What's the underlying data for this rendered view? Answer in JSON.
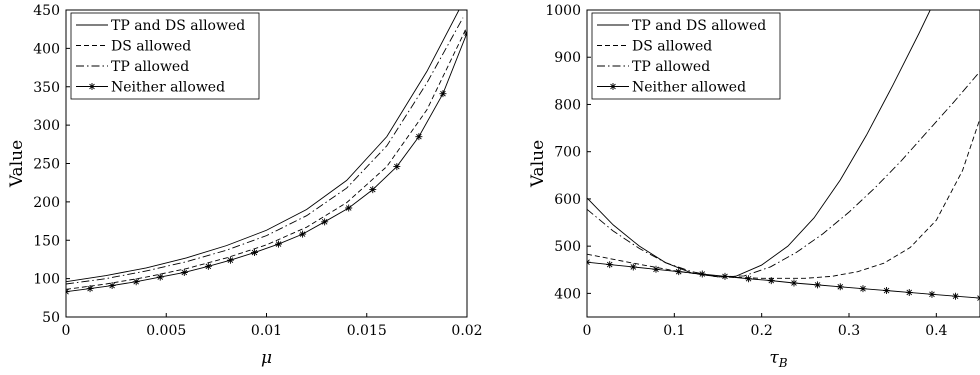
{
  "chart_data": [
    {
      "type": "line",
      "xlabel": "μ",
      "ylabel": "Value",
      "xlim": [
        0,
        0.02
      ],
      "ylim": [
        50,
        450
      ],
      "xticks": [
        "0",
        "0.005",
        "0.01",
        "0.015",
        "0.02"
      ],
      "yticks": [
        "50",
        "100",
        "150",
        "200",
        "250",
        "300",
        "350",
        "400",
        "450"
      ],
      "grid": false,
      "legend_position": "top-left",
      "series": [
        {
          "name": "TP and DS allowed",
          "style": "solid",
          "x": [
            0,
            0.002,
            0.004,
            0.006,
            0.008,
            0.01,
            0.012,
            0.014,
            0.016,
            0.018,
            0.0196
          ],
          "y": [
            96,
            104,
            114,
            127,
            143,
            163,
            190,
            228,
            285,
            370,
            450
          ]
        },
        {
          "name": "DS allowed",
          "style": "dashed",
          "x": [
            0,
            0.002,
            0.004,
            0.006,
            0.008,
            0.01,
            0.012,
            0.014,
            0.016,
            0.018,
            0.02
          ],
          "y": [
            86,
            93,
            102,
            113,
            127,
            144,
            167,
            199,
            246,
            320,
            428
          ]
        },
        {
          "name": "TP allowed",
          "style": "dashdot",
          "x": [
            0,
            0.002,
            0.004,
            0.006,
            0.008,
            0.01,
            0.012,
            0.014,
            0.016,
            0.018,
            0.0198
          ],
          "y": [
            93,
            100,
            110,
            122,
            137,
            156,
            182,
            218,
            273,
            355,
            440
          ]
        },
        {
          "name": "Neither allowed",
          "style": "solid-star",
          "x": [
            0,
            0.0012,
            0.0023,
            0.0035,
            0.0047,
            0.0059,
            0.0071,
            0.0082,
            0.0094,
            0.0106,
            0.0118,
            0.0129,
            0.0141,
            0.0153,
            0.0165,
            0.0176,
            0.0188,
            0.02
          ],
          "y": [
            83,
            87,
            91,
            96,
            102,
            108,
            116,
            124,
            134,
            145,
            158,
            174,
            192,
            216,
            246,
            285,
            341,
            420
          ]
        }
      ]
    },
    {
      "type": "line",
      "xlabel": "τB",
      "ylabel": "Value",
      "xlim": [
        0,
        0.45
      ],
      "ylim": [
        350,
        1000
      ],
      "xticks": [
        "0",
        "0.1",
        "0.2",
        "0.3",
        "0.4"
      ],
      "yticks": [
        "400",
        "500",
        "600",
        "700",
        "800",
        "900",
        "1000"
      ],
      "grid": false,
      "legend_position": "top-left",
      "series": [
        {
          "name": "TP and DS allowed",
          "style": "solid",
          "x": [
            0,
            0.03,
            0.06,
            0.09,
            0.12,
            0.15,
            0.17,
            0.2,
            0.23,
            0.26,
            0.29,
            0.32,
            0.35,
            0.38,
            0.393
          ],
          "y": [
            602,
            545,
            500,
            465,
            443,
            435,
            436,
            460,
            500,
            560,
            640,
            735,
            840,
            950,
            1000
          ]
        },
        {
          "name": "DS allowed",
          "style": "dashed",
          "x": [
            0,
            0.05,
            0.1,
            0.15,
            0.2,
            0.25,
            0.28,
            0.31,
            0.34,
            0.37,
            0.4,
            0.43,
            0.45
          ],
          "y": [
            483,
            465,
            448,
            435,
            432,
            432,
            436,
            446,
            464,
            497,
            555,
            660,
            770
          ]
        },
        {
          "name": "TP allowed",
          "style": "dashdot",
          "x": [
            0,
            0.03,
            0.06,
            0.09,
            0.12,
            0.15,
            0.18,
            0.21,
            0.24,
            0.27,
            0.3,
            0.33,
            0.36,
            0.39,
            0.42,
            0.45
          ],
          "y": [
            578,
            532,
            495,
            465,
            446,
            435,
            437,
            456,
            487,
            526,
            572,
            624,
            681,
            743,
            805,
            870
          ]
        },
        {
          "name": "Neither allowed",
          "style": "solid-star",
          "x": [
            0,
            0.026,
            0.053,
            0.079,
            0.105,
            0.132,
            0.158,
            0.185,
            0.211,
            0.237,
            0.264,
            0.29,
            0.316,
            0.343,
            0.369,
            0.395,
            0.422,
            0.45
          ],
          "y": [
            466,
            461,
            456,
            451,
            446,
            441,
            436,
            431,
            427,
            422,
            418,
            414,
            410,
            406,
            402,
            398,
            394,
            390
          ]
        }
      ]
    }
  ]
}
